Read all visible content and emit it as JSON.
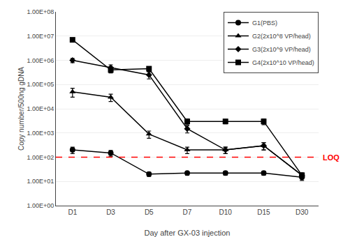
{
  "chart_data": {
    "type": "line",
    "categories": [
      "D1",
      "D3",
      "D5",
      "D7",
      "D10",
      "D15",
      "D30"
    ],
    "series": [
      {
        "name": "G1(PBS)",
        "color": "#000000",
        "marker": "circle",
        "values": [
          200,
          150,
          20,
          22,
          22,
          22,
          15
        ],
        "error_hi": [
          60,
          40,
          4,
          4,
          4,
          4,
          4
        ],
        "error_lo": [
          60,
          40,
          4,
          4,
          4,
          4,
          4
        ]
      },
      {
        "name": "G2(2x10^8 VP/head)",
        "color": "#000000",
        "marker": "triangle-up",
        "values": [
          50000,
          30000,
          900,
          200,
          200,
          300,
          18
        ],
        "error_hi": [
          20000,
          10000,
          300,
          60,
          60,
          100,
          4
        ],
        "error_lo": [
          20000,
          10000,
          300,
          60,
          60,
          100,
          4
        ]
      },
      {
        "name": "G3(2x10^9 VP/head)",
        "color": "#000000",
        "marker": "diamond",
        "values": [
          1000000,
          500000,
          250000,
          1500,
          200,
          300,
          18
        ],
        "error_hi": [
          200000,
          150000,
          80000,
          500,
          60,
          100,
          4
        ],
        "error_lo": [
          200000,
          150000,
          80000,
          500,
          60,
          100,
          4
        ]
      },
      {
        "name": "G4(2x10^10 VP/head)",
        "color": "#000000",
        "marker": "square",
        "values": [
          7000000,
          400000,
          450000,
          3000,
          3000,
          3000,
          18
        ],
        "error_hi": [
          800000,
          100000,
          100000,
          800,
          600,
          800,
          4
        ],
        "error_lo": [
          800000,
          100000,
          100000,
          800,
          600,
          800,
          4
        ]
      }
    ],
    "annotations": [
      {
        "text": "LOQ",
        "y": 100,
        "color": "#ff0000",
        "line_style": "dashed"
      }
    ],
    "xlabel": "Day after GX-03 injection",
    "ylabel": "Copy number/500ng gDNA",
    "log": "y",
    "ylim": [
      1,
      100000000
    ],
    "yticks": [
      {
        "value": 1,
        "label": "1.00E+00"
      },
      {
        "value": 10,
        "label": "1.00E+01"
      },
      {
        "value": 100,
        "label": "1.00E+02"
      },
      {
        "value": 1000,
        "label": "1.00E+03"
      },
      {
        "value": 10000,
        "label": "1.00E+04"
      },
      {
        "value": 100000,
        "label": "1.00E+05"
      },
      {
        "value": 1000000,
        "label": "1.00E+06"
      },
      {
        "value": 10000000,
        "label": "1.00E+07"
      },
      {
        "value": 100000000,
        "label": "1.00E+08"
      }
    ],
    "grid": "y",
    "legend": "upper right"
  }
}
